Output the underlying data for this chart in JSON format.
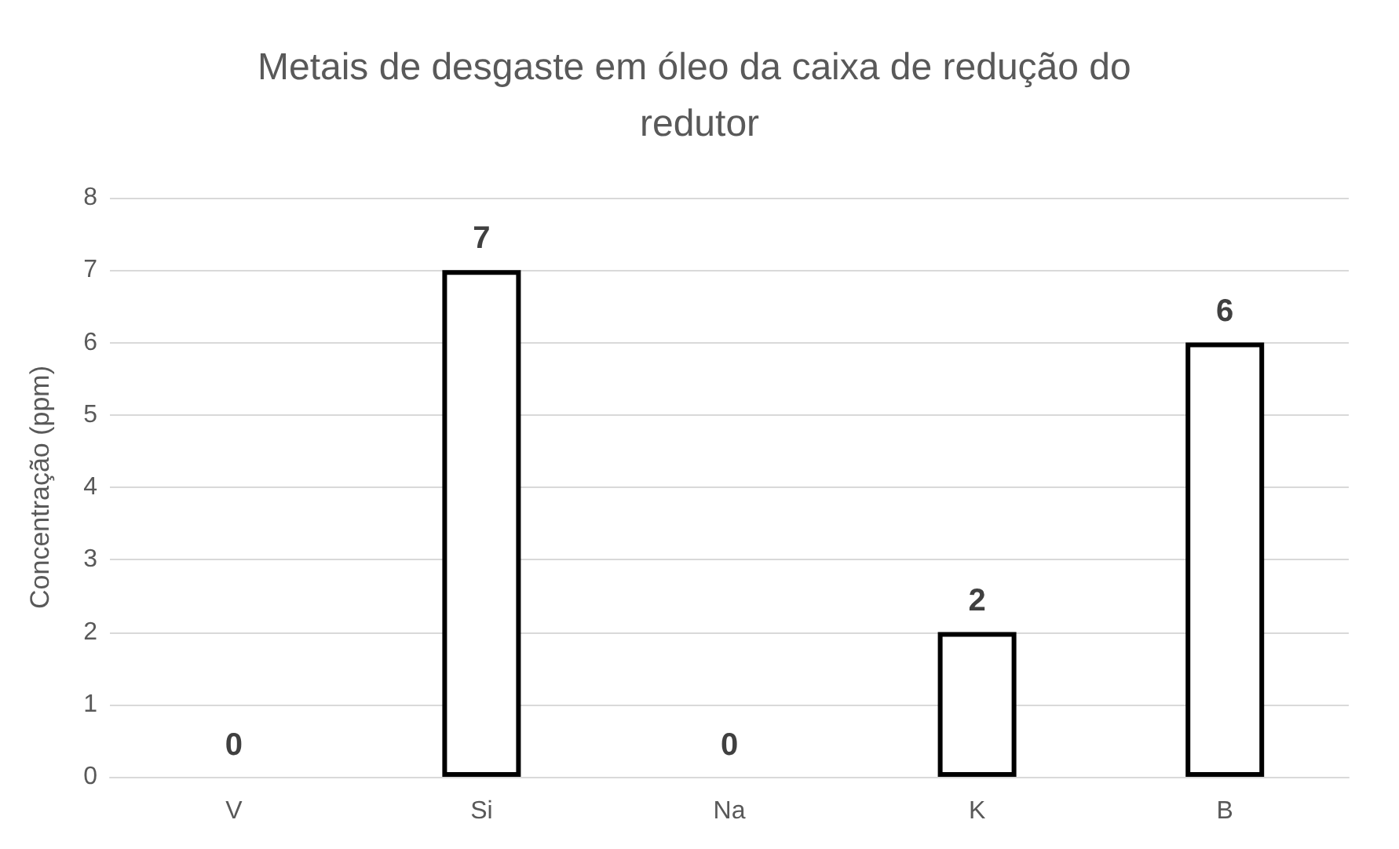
{
  "chart_data": {
    "type": "bar",
    "title": "Metais de desgaste em óleo da caixa de redução do redutor",
    "ylabel": "Concentração (ppm)",
    "categories": [
      "V",
      "Si",
      "Na",
      "K",
      "B"
    ],
    "values": [
      0,
      7,
      0,
      2,
      6
    ],
    "color": "#ffffff",
    "ylim": [
      0,
      8
    ],
    "yticks": [
      0,
      1,
      2,
      3,
      4,
      5,
      6,
      7,
      8
    ],
    "grid": "y",
    "data_labels": true
  }
}
